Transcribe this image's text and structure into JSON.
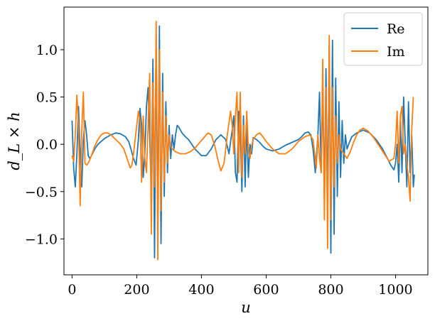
{
  "chart_data": {
    "type": "line",
    "xlabel": "u",
    "ylabel": "d_L × h",
    "xlim": [
      -25,
      1100
    ],
    "ylim": [
      -1.38,
      1.45
    ],
    "xticks": [
      0,
      200,
      400,
      600,
      800,
      1000
    ],
    "xtick_labels": [
      "0",
      "200",
      "400",
      "600",
      "800",
      "1000"
    ],
    "yticks": [
      -1.0,
      -0.5,
      0.0,
      0.5,
      1.0
    ],
    "ytick_labels": [
      "−1.0",
      "−0.5",
      "0.0",
      "0.5",
      "1.0"
    ],
    "legend": {
      "position": "top-right",
      "entries": [
        "Re",
        "Im"
      ]
    },
    "grid": false,
    "series": [
      {
        "name": "Re",
        "color": "#1f77b4",
        "points": [
          [
            0,
            0.25
          ],
          [
            5,
            -0.25
          ],
          [
            10,
            -0.45
          ],
          [
            15,
            -0.1
          ],
          [
            20,
            0.4
          ],
          [
            25,
            -0.1
          ],
          [
            30,
            -0.45
          ],
          [
            35,
            0.05
          ],
          [
            40,
            0.25
          ],
          [
            45,
            0.1
          ],
          [
            50,
            -0.12
          ],
          [
            55,
            -0.15
          ],
          [
            60,
            -0.12
          ],
          [
            70,
            -0.05
          ],
          [
            80,
            0.0
          ],
          [
            90,
            0.03
          ],
          [
            100,
            0.06
          ],
          [
            110,
            0.08
          ],
          [
            120,
            0.1
          ],
          [
            135,
            0.12
          ],
          [
            150,
            0.11
          ],
          [
            165,
            0.08
          ],
          [
            175,
            0.03
          ],
          [
            182,
            -0.05
          ],
          [
            190,
            -0.15
          ],
          [
            198,
            -0.22
          ],
          [
            205,
            0.05
          ],
          [
            210,
            0.38
          ],
          [
            215,
            0.2
          ],
          [
            220,
            -0.35
          ],
          [
            225,
            -0.1
          ],
          [
            230,
            0.4
          ],
          [
            235,
            0.6
          ],
          [
            240,
            0.1
          ],
          [
            245,
            -0.55
          ],
          [
            250,
            0.9
          ],
          [
            255,
            -1.2
          ],
          [
            260,
            1.15
          ],
          [
            265,
            -0.9
          ],
          [
            270,
            1.25
          ],
          [
            275,
            -1.05
          ],
          [
            280,
            0.75
          ],
          [
            285,
            -0.55
          ],
          [
            290,
            0.45
          ],
          [
            295,
            -0.3
          ],
          [
            300,
            0.2
          ],
          [
            305,
            -0.15
          ],
          [
            310,
            0.1
          ],
          [
            315,
            -0.05
          ],
          [
            320,
            0.1
          ],
          [
            325,
            0.2
          ],
          [
            330,
            0.18
          ],
          [
            340,
            0.12
          ],
          [
            350,
            0.08
          ],
          [
            360,
            0.05
          ],
          [
            380,
            -0.05
          ],
          [
            400,
            -0.12
          ],
          [
            415,
            -0.12
          ],
          [
            430,
            -0.05
          ],
          [
            445,
            0.05
          ],
          [
            460,
            0.1
          ],
          [
            475,
            0.05
          ],
          [
            485,
            -0.1
          ],
          [
            495,
            0.15
          ],
          [
            500,
            0.3
          ],
          [
            505,
            -0.3
          ],
          [
            510,
            -0.4
          ],
          [
            515,
            0.35
          ],
          [
            520,
            0.18
          ],
          [
            525,
            -0.5
          ],
          [
            530,
            0.3
          ],
          [
            535,
            -0.45
          ],
          [
            540,
            0.25
          ],
          [
            545,
            -0.35
          ],
          [
            550,
            0.0
          ],
          [
            555,
            -0.1
          ],
          [
            560,
            0.07
          ],
          [
            570,
            0.05
          ],
          [
            580,
            0.02
          ],
          [
            590,
            -0.02
          ],
          [
            600,
            -0.05
          ],
          [
            620,
            -0.07
          ],
          [
            640,
            -0.05
          ],
          [
            660,
            -0.01
          ],
          [
            680,
            0.02
          ],
          [
            700,
            0.05
          ],
          [
            710,
            0.08
          ],
          [
            720,
            0.12
          ],
          [
            730,
            0.13
          ],
          [
            738,
            0.1
          ],
          [
            745,
            -0.05
          ],
          [
            752,
            -0.3
          ],
          [
            760,
            0.1
          ],
          [
            765,
            0.55
          ],
          [
            770,
            -0.3
          ],
          [
            775,
            0.6
          ],
          [
            780,
            -0.55
          ],
          [
            785,
            0.8
          ],
          [
            790,
            -0.7
          ],
          [
            795,
            1.05
          ],
          [
            800,
            -1.15
          ],
          [
            805,
            1.1
          ],
          [
            810,
            -0.95
          ],
          [
            815,
            0.7
          ],
          [
            820,
            -0.55
          ],
          [
            825,
            0.45
          ],
          [
            830,
            -0.35
          ],
          [
            835,
            0.25
          ],
          [
            840,
            -0.2
          ],
          [
            845,
            0.1
          ],
          [
            850,
            -0.05
          ],
          [
            855,
            0.0
          ],
          [
            865,
            0.08
          ],
          [
            880,
            0.12
          ],
          [
            900,
            0.15
          ],
          [
            920,
            0.12
          ],
          [
            940,
            0.05
          ],
          [
            960,
            -0.05
          ],
          [
            975,
            -0.15
          ],
          [
            985,
            -0.22
          ],
          [
            995,
            -0.27
          ],
          [
            1000,
            -0.2
          ],
          [
            1005,
            0.0
          ],
          [
            1010,
            -0.4
          ],
          [
            1015,
            0.25
          ],
          [
            1020,
            -0.3
          ],
          [
            1025,
            0.5
          ],
          [
            1030,
            0.0
          ],
          [
            1035,
            -0.45
          ],
          [
            1040,
            0.45
          ],
          [
            1045,
            -0.3
          ],
          [
            1050,
            0.1
          ],
          [
            1055,
            -0.45
          ],
          [
            1058,
            -0.32
          ]
        ]
      },
      {
        "name": "Im",
        "color": "#ff7f0e",
        "points": [
          [
            0,
            -0.12
          ],
          [
            5,
            -0.18
          ],
          [
            10,
            0.1
          ],
          [
            15,
            0.52
          ],
          [
            20,
            0.2
          ],
          [
            25,
            -0.65
          ],
          [
            30,
            0.15
          ],
          [
            35,
            0.55
          ],
          [
            40,
            -0.2
          ],
          [
            45,
            -0.22
          ],
          [
            50,
            -0.2
          ],
          [
            60,
            -0.12
          ],
          [
            70,
            -0.02
          ],
          [
            80,
            0.05
          ],
          [
            90,
            0.1
          ],
          [
            100,
            0.12
          ],
          [
            110,
            0.12
          ],
          [
            120,
            0.1
          ],
          [
            135,
            0.05
          ],
          [
            150,
            0.0
          ],
          [
            160,
            -0.05
          ],
          [
            170,
            -0.15
          ],
          [
            180,
            -0.25
          ],
          [
            185,
            -0.22
          ],
          [
            190,
            -0.1
          ],
          [
            195,
            0.05
          ],
          [
            200,
            0.2
          ],
          [
            205,
            0.35
          ],
          [
            210,
            0.25
          ],
          [
            215,
            -0.4
          ],
          [
            220,
            0.3
          ],
          [
            225,
            -0.15
          ],
          [
            230,
            -0.3
          ],
          [
            235,
            0.2
          ],
          [
            240,
            0.75
          ],
          [
            245,
            -0.95
          ],
          [
            250,
            0.65
          ],
          [
            255,
            -0.45
          ],
          [
            260,
            1.3
          ],
          [
            265,
            -1.22
          ],
          [
            270,
            1.0
          ],
          [
            275,
            -0.7
          ],
          [
            280,
            0.55
          ],
          [
            285,
            -0.4
          ],
          [
            290,
            0.3
          ],
          [
            295,
            -0.2
          ],
          [
            300,
            0.1
          ],
          [
            305,
            -0.02
          ],
          [
            310,
            -0.05
          ],
          [
            320,
            -0.08
          ],
          [
            335,
            -0.1
          ],
          [
            350,
            -0.1
          ],
          [
            365,
            -0.08
          ],
          [
            380,
            -0.04
          ],
          [
            400,
            0.04
          ],
          [
            410,
            0.08
          ],
          [
            420,
            0.12
          ],
          [
            430,
            0.1
          ],
          [
            440,
            0.0
          ],
          [
            450,
            -0.15
          ],
          [
            460,
            -0.28
          ],
          [
            470,
            -0.2
          ],
          [
            480,
            0.1
          ],
          [
            490,
            0.35
          ],
          [
            495,
            0.2
          ],
          [
            500,
            -0.1
          ],
          [
            505,
            0.3
          ],
          [
            510,
            0.55
          ],
          [
            515,
            -0.3
          ],
          [
            520,
            0.55
          ],
          [
            525,
            -0.35
          ],
          [
            530,
            0.2
          ],
          [
            535,
            -0.1
          ],
          [
            540,
            0.35
          ],
          [
            545,
            -0.05
          ],
          [
            550,
            -0.15
          ],
          [
            555,
            -0.02
          ],
          [
            560,
            0.05
          ],
          [
            570,
            0.1
          ],
          [
            580,
            0.12
          ],
          [
            590,
            0.08
          ],
          [
            600,
            0.03
          ],
          [
            620,
            -0.05
          ],
          [
            640,
            -0.1
          ],
          [
            660,
            -0.1
          ],
          [
            680,
            -0.05
          ],
          [
            700,
            0.03
          ],
          [
            720,
            0.08
          ],
          [
            735,
            0.1
          ],
          [
            745,
            0.05
          ],
          [
            750,
            -0.1
          ],
          [
            755,
            -0.25
          ],
          [
            760,
            0.1
          ],
          [
            765,
            -0.15
          ],
          [
            770,
            -0.3
          ],
          [
            775,
            0.9
          ],
          [
            780,
            -0.8
          ],
          [
            785,
            0.6
          ],
          [
            790,
            -1.1
          ],
          [
            795,
            1.15
          ],
          [
            800,
            -0.8
          ],
          [
            805,
            0.6
          ],
          [
            810,
            -0.45
          ],
          [
            815,
            0.3
          ],
          [
            820,
            -0.2
          ],
          [
            825,
            0.1
          ],
          [
            830,
            -0.05
          ],
          [
            840,
            -0.1
          ],
          [
            850,
            -0.15
          ],
          [
            860,
            -0.08
          ],
          [
            870,
            0.02
          ],
          [
            880,
            0.1
          ],
          [
            890,
            0.15
          ],
          [
            900,
            0.17
          ],
          [
            915,
            0.14
          ],
          [
            930,
            0.08
          ],
          [
            950,
            -0.02
          ],
          [
            965,
            -0.1
          ],
          [
            980,
            -0.18
          ],
          [
            995,
            -0.15
          ],
          [
            1000,
            0.0
          ],
          [
            1005,
            0.35
          ],
          [
            1010,
            -0.2
          ],
          [
            1015,
            0.3
          ],
          [
            1020,
            0.4
          ],
          [
            1025,
            -0.1
          ],
          [
            1030,
            0.0
          ],
          [
            1035,
            -0.2
          ],
          [
            1040,
            -0.35
          ],
          [
            1045,
            -0.6
          ],
          [
            1050,
            0.15
          ],
          [
            1055,
            0.5
          ]
        ]
      }
    ]
  }
}
